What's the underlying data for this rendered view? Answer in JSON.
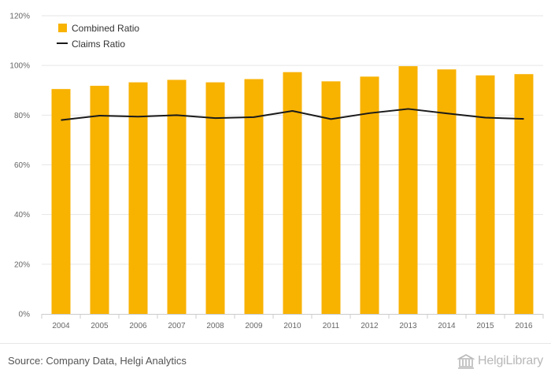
{
  "chart_data": {
    "type": "bar",
    "categories": [
      "2004",
      "2005",
      "2006",
      "2007",
      "2008",
      "2009",
      "2010",
      "2011",
      "2012",
      "2013",
      "2014",
      "2015",
      "2016"
    ],
    "series": [
      {
        "name": "Combined Ratio",
        "type": "bar",
        "color": "#f8b200",
        "values": [
          90.5,
          91.8,
          93.2,
          94.2,
          93.2,
          94.5,
          97.3,
          93.6,
          95.5,
          99.7,
          98.4,
          96.0,
          96.5
        ]
      },
      {
        "name": "Claims Ratio",
        "type": "line",
        "color": "#1a1a1a",
        "values": [
          78.0,
          79.8,
          79.4,
          80.0,
          78.8,
          79.2,
          81.7,
          78.4,
          80.8,
          82.5,
          80.7,
          79.0,
          78.5
        ]
      }
    ],
    "yticks": [
      "0%",
      "20%",
      "40%",
      "60%",
      "80%",
      "100%",
      "120%"
    ],
    "ylim": [
      0,
      120
    ],
    "grid": true,
    "legend_position": "top-left"
  },
  "footer": {
    "source": "Source: Company Data, Helgi Analytics",
    "brand": "HelgiLibrary"
  },
  "brand_icon": "library-building-icon"
}
